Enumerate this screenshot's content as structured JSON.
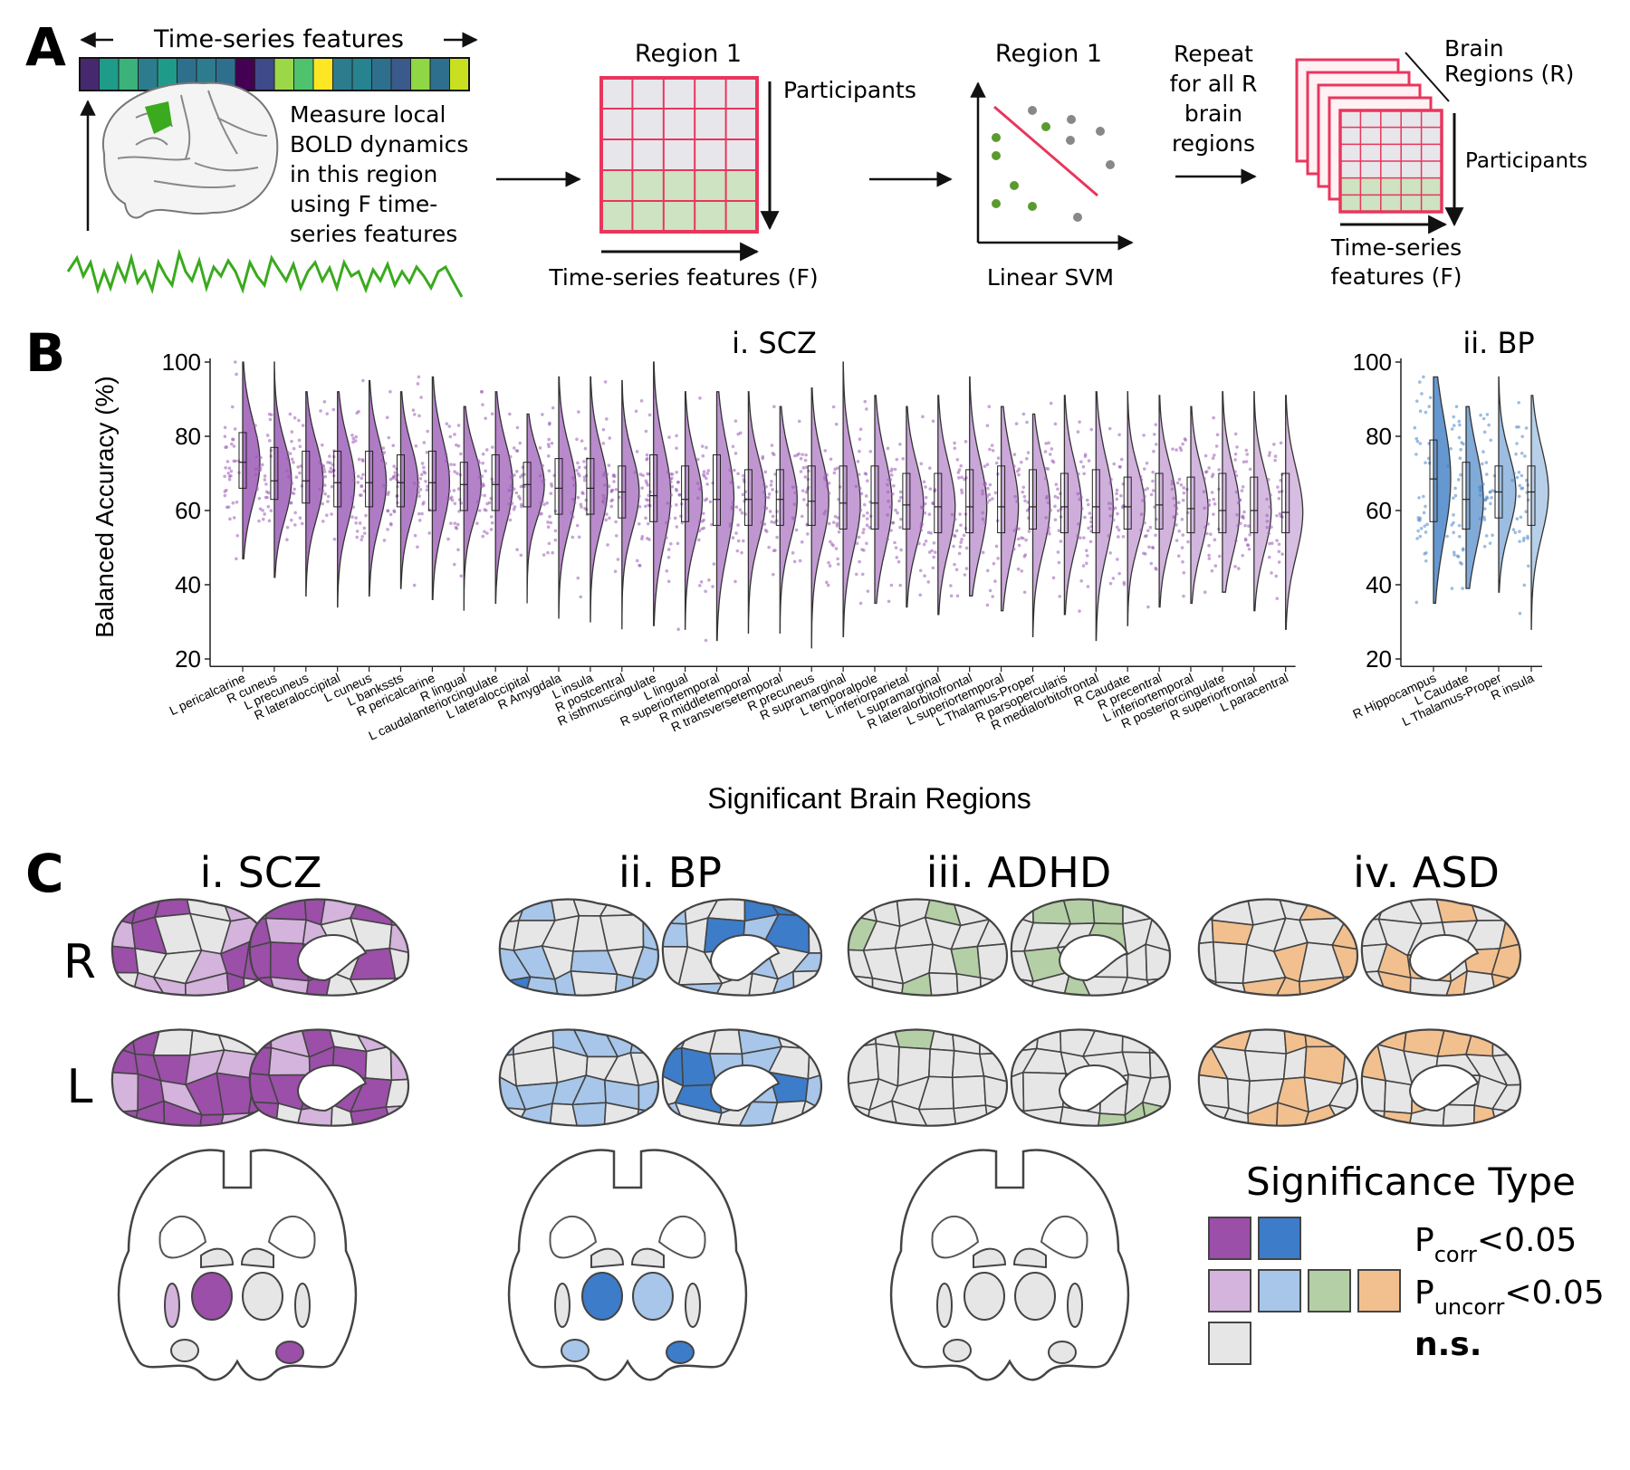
{
  "panel_labels": {
    "a": "A",
    "b": "B",
    "c": "C"
  },
  "panel_a": {
    "timeseries_features_label": "Time-series features",
    "measure_text": [
      "Measure local",
      "BOLD dynamics",
      "in this region",
      "using F time-",
      "series features"
    ],
    "matrix_title": "Region 1",
    "participants_label": "Participants",
    "features_axis_label": "Time-series features (F)",
    "svm_title": "Region 1",
    "svm_label": "Linear SVM",
    "repeat_text": [
      "Repeat",
      "for all R",
      "brain",
      "regions"
    ],
    "brain_regions_label": [
      "Brain",
      "Regions (R)"
    ],
    "participants_label_2": "Participants",
    "features_label_2": [
      "Time-series",
      "features (F)"
    ],
    "feature_colors": [
      "#46286e",
      "#1f9b8a",
      "#3bb27a",
      "#2c7c8e",
      "#1f9b8a",
      "#2f6f8e",
      "#2c7c8e",
      "#2f6f8e",
      "#440154",
      "#3e4a89",
      "#9cd748",
      "#4fc26d",
      "#fde725",
      "#2c7c8e",
      "#26838f",
      "#2f6f8e",
      "#3b5a8c",
      "#8fd744",
      "#2f6f8e",
      "#c9e020"
    ]
  },
  "panel_b": {
    "scz_title": "i. SCZ",
    "bp_title": "ii. BP",
    "ylabel": "Balanced Accuracy (%)",
    "xlabel": "Significant Brain Regions"
  },
  "chart_data": [
    {
      "type": "violin",
      "title": "i. SCZ",
      "ylabel": "Balanced Accuracy (%)",
      "xlabel": "Significant Brain Regions",
      "ylim": [
        20,
        100
      ],
      "yticks": [
        20,
        40,
        60,
        80,
        100
      ],
      "color": "#9b59b6",
      "categories": [
        "L pericalcarine",
        "R cuneus",
        "L precuneus",
        "R lateraloccipital",
        "L cuneus",
        "L bankssts",
        "R pericalcarine",
        "R lingual",
        "L caudalanteriorcingulate",
        "L lateraloccipital",
        "R Amygdala",
        "L insula",
        "R postcentral",
        "R isthmuscingulate",
        "L lingual",
        "R superiortemporal",
        "R middletemporal",
        "R transversetemporal",
        "R precuneus",
        "R supramarginal",
        "L temporalpole",
        "L inferiorparietal",
        "L supramarginal",
        "R lateralorbitofrontal",
        "L superiortemporal",
        "L Thalamus-Proper",
        "R parsopercularis",
        "R medialorbitofrontal",
        "R Caudate",
        "R precentral",
        "L inferiortemporal",
        "R posteriorcingulate",
        "R superiorfrontal",
        "L paracentral"
      ],
      "medians": [
        73,
        68,
        68,
        67.5,
        67.5,
        67.5,
        67.5,
        67,
        67,
        67,
        66,
        66,
        65,
        64,
        63,
        63,
        63,
        63,
        62.5,
        62,
        62,
        61.5,
        61,
        61,
        61,
        61,
        61,
        61,
        61,
        61.5,
        60.5,
        60,
        60,
        59.5
      ],
      "q1": [
        66,
        63,
        62,
        61,
        61,
        61,
        60,
        60,
        60,
        61,
        59,
        59,
        58,
        57,
        57,
        56,
        56,
        56,
        56,
        55,
        55,
        55,
        54,
        54,
        54,
        55,
        54,
        54,
        55,
        55,
        54,
        54,
        54,
        54
      ],
      "q3": [
        81,
        77,
        76,
        76,
        76,
        75,
        76,
        73,
        75,
        73,
        74,
        74,
        72,
        75,
        72,
        75,
        71,
        71,
        72,
        72,
        72,
        70,
        70,
        71,
        72,
        71,
        70,
        71,
        69,
        70,
        69,
        70,
        69,
        70
      ],
      "mins": [
        47,
        42,
        37,
        34,
        37,
        39,
        36,
        33,
        35,
        35,
        31,
        30,
        28,
        29,
        28,
        25,
        27,
        27,
        23,
        26,
        35,
        34,
        32,
        37,
        33,
        26,
        32,
        25,
        29,
        34,
        35,
        38,
        33,
        28
      ],
      "maxs": [
        100,
        100,
        92,
        92,
        95,
        92,
        96,
        88,
        92,
        86,
        96,
        96,
        95,
        100,
        92,
        92,
        92,
        88,
        93,
        100,
        91,
        88,
        91,
        96,
        88,
        86,
        91,
        92,
        92,
        91,
        88,
        92,
        92,
        91
      ]
    },
    {
      "type": "violin",
      "title": "ii. BP",
      "ylim": [
        20,
        100
      ],
      "yticks": [
        20,
        40,
        60,
        80,
        100
      ],
      "color": "#5b8fd1",
      "categories": [
        "R Hippocampus",
        "L Caudate",
        "L Thalamus-Proper",
        "R insula"
      ],
      "medians": [
        68.5,
        63,
        65,
        65
      ],
      "q1": [
        57,
        55,
        58,
        56
      ],
      "q3": [
        79,
        73,
        72,
        72
      ],
      "mins": [
        35,
        39,
        38,
        28
      ],
      "maxs": [
        96,
        88,
        96,
        91
      ]
    }
  ],
  "panel_c": {
    "titles": [
      "i. SCZ",
      "ii. BP",
      "iii. ADHD",
      "iv. ASD"
    ],
    "hemi_labels": [
      "R",
      "L"
    ],
    "colors": {
      "scz_corr": "#9b4fa8",
      "scz_uncorr": "#d4b3dc",
      "bp_corr": "#3d7cc9",
      "bp_uncorr": "#a7c6e9",
      "adhd_uncorr": "#b4cfa5",
      "asd_uncorr": "#f2c08f",
      "ns": "#e6e6e6"
    },
    "legend": {
      "title": "Significance Type",
      "corr_label": "P",
      "corr_sub": "corr",
      "corr_val": "<0.05",
      "uncorr_label": "P",
      "uncorr_sub": "uncorr",
      "uncorr_val": "<0.05",
      "ns_label": "n.s."
    }
  }
}
